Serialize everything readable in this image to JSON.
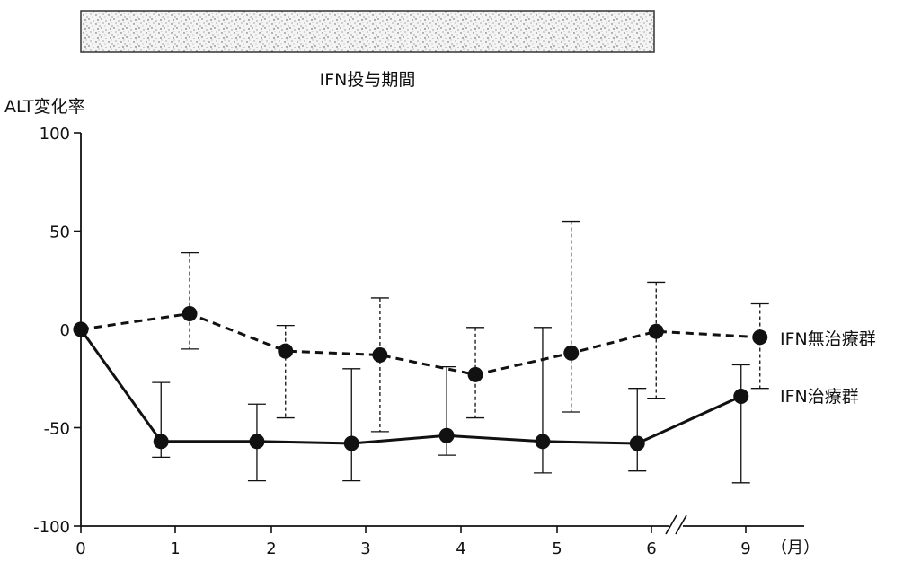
{
  "chart_data": {
    "type": "line",
    "title": "",
    "ylabel": "ALT変化率",
    "xlabel": "",
    "x_unit": "（月）",
    "period_label": "IFN投与期間",
    "categories": [
      "0",
      "1",
      "2",
      "3",
      "4",
      "5",
      "6",
      "9"
    ],
    "xlim": [
      0,
      9
    ],
    "ylim": [
      -100,
      100
    ],
    "yticks": [
      100,
      50,
      0,
      -50,
      -100
    ],
    "axis_break_after": "6",
    "grid": false,
    "legend_placement": "right-inline",
    "series": [
      {
        "name": "IFN無治療群",
        "line_style": "dashed",
        "color": "#111111",
        "points": [
          {
            "x": 0,
            "y": 0,
            "err_low": null,
            "err_high": null
          },
          {
            "x": 1.15,
            "y": 8,
            "err_low": -10,
            "err_high": 39
          },
          {
            "x": 2.15,
            "y": -11,
            "err_low": -45,
            "err_high": 2
          },
          {
            "x": 3.15,
            "y": -13,
            "err_low": -52,
            "err_high": 16
          },
          {
            "x": 4.15,
            "y": -23,
            "err_low": -45,
            "err_high": 1
          },
          {
            "x": 5.15,
            "y": -12,
            "err_low": -42,
            "err_high": 55
          },
          {
            "x": 6.15,
            "y": -1,
            "err_low": -35,
            "err_high": 24
          },
          {
            "x": 9.15,
            "y": -4,
            "err_low": -30,
            "err_high": 13
          }
        ]
      },
      {
        "name": "IFN治療群",
        "line_style": "solid",
        "color": "#111111",
        "points": [
          {
            "x": 0,
            "y": 0,
            "err_low": null,
            "err_high": null
          },
          {
            "x": 0.85,
            "y": -57,
            "err_low": -65,
            "err_high": -27
          },
          {
            "x": 1.85,
            "y": -57,
            "err_low": -77,
            "err_high": -38
          },
          {
            "x": 2.85,
            "y": -58,
            "err_low": -77,
            "err_high": -20
          },
          {
            "x": 3.85,
            "y": -54,
            "err_low": -64,
            "err_high": -19
          },
          {
            "x": 4.85,
            "y": -57,
            "err_low": -73,
            "err_high": 1
          },
          {
            "x": 5.85,
            "y": -58,
            "err_low": -72,
            "err_high": -30
          },
          {
            "x": 8.85,
            "y": -34,
            "err_low": -78,
            "err_high": -18
          }
        ]
      }
    ]
  }
}
